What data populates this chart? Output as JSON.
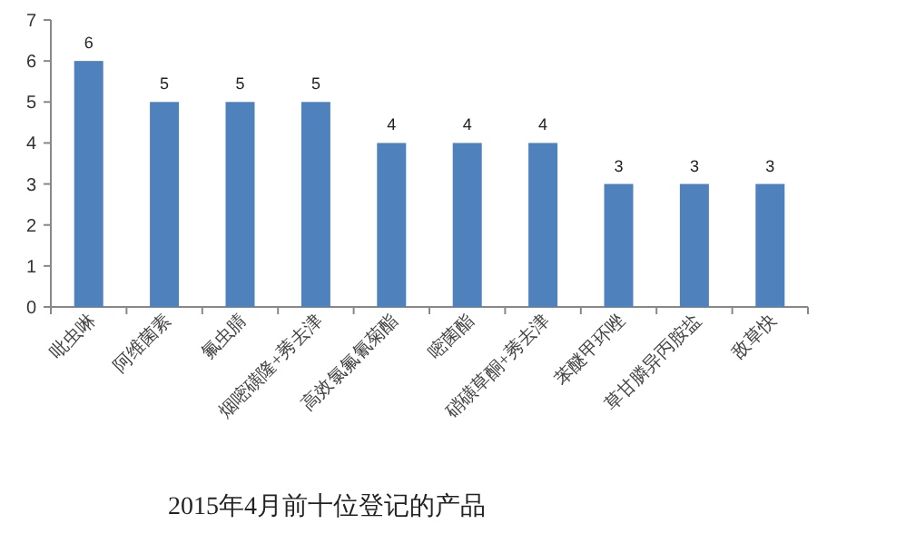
{
  "chart_data": {
    "type": "bar",
    "title": "2015年4月前十位登记的产品",
    "categories": [
      "吡虫啉",
      "阿维菌素",
      "氟虫腈",
      "烟嘧磺隆+莠去津",
      "高效氯氟氰菊酯",
      "嘧菌酯",
      "硝磺草酮+莠去津",
      "苯醚甲环唑",
      "草甘膦异丙胺盐",
      "敌草快"
    ],
    "values": [
      6,
      5,
      5,
      5,
      4,
      4,
      4,
      3,
      3,
      3
    ],
    "color": "#4f81bd",
    "ylim": [
      0,
      7
    ],
    "yticks": [
      0,
      1,
      2,
      3,
      4,
      5,
      6,
      7
    ],
    "data_labels": true
  }
}
